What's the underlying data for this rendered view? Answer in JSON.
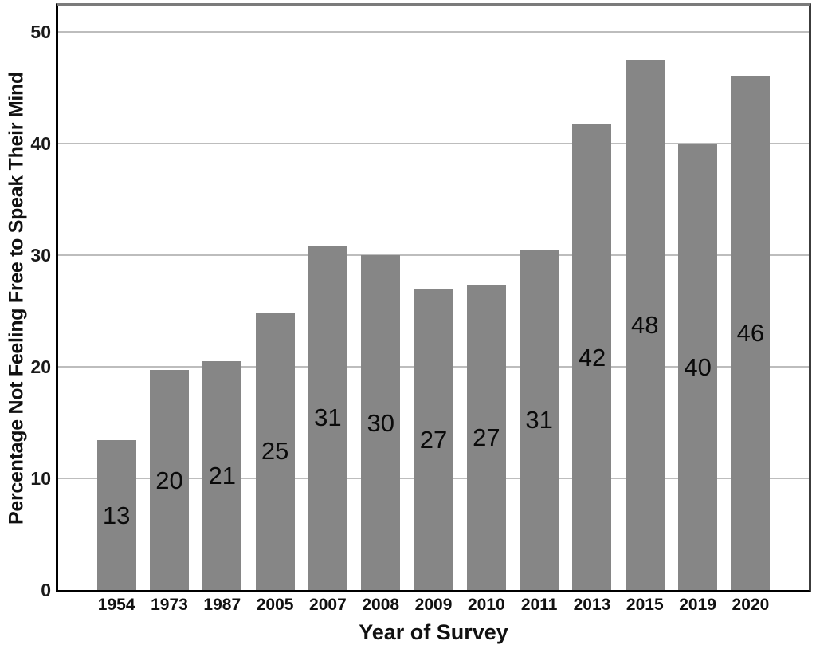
{
  "chart_data": {
    "type": "bar",
    "title": "",
    "xlabel": "Year of Survey",
    "ylabel": "Percentage Not Feeling Free to Speak Their Mind",
    "categories": [
      "1954",
      "1973",
      "1987",
      "2005",
      "2007",
      "2008",
      "2009",
      "2010",
      "2011",
      "2013",
      "2015",
      "2019",
      "2020"
    ],
    "values": [
      13,
      20,
      21,
      25,
      31,
      30,
      27,
      27,
      31,
      42,
      48,
      40,
      46
    ],
    "bar_heights_precise": [
      13.4,
      19.7,
      20.5,
      24.9,
      30.9,
      30.0,
      27.0,
      27.3,
      30.5,
      41.7,
      47.5,
      40.0,
      46.1
    ],
    "y_ticks": [
      0,
      10,
      20,
      30,
      40,
      50
    ],
    "ylim": [
      0,
      52.3
    ],
    "grid": true,
    "legend": "none",
    "bar_color": "#868686",
    "gridline_color": "#bdbdbd",
    "value_label_position": "center-inside"
  }
}
